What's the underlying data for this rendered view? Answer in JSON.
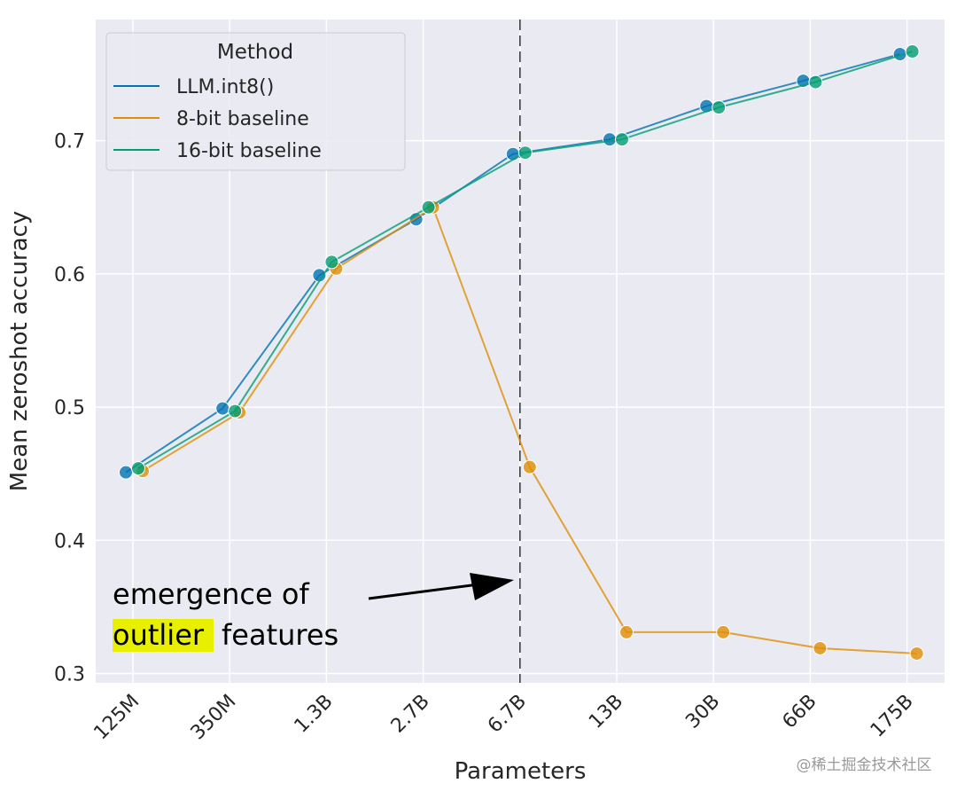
{
  "chart_data": {
    "type": "line",
    "xlabel": "Parameters",
    "ylabel": "Mean zeroshot accuracy",
    "categories": [
      "125M",
      "350M",
      "1.3B",
      "2.7B",
      "6.7B",
      "13B",
      "30B",
      "66B",
      "175B"
    ],
    "series": [
      {
        "name": "LLM.int8()",
        "color": "#0173b2",
        "values": [
          0.451,
          0.499,
          0.599,
          0.641,
          0.69,
          0.701,
          0.726,
          0.745,
          0.765
        ]
      },
      {
        "name": "8-bit baseline",
        "color": "#de8f05",
        "values": [
          0.452,
          0.496,
          0.604,
          0.65,
          0.455,
          0.331,
          0.331,
          0.319,
          0.315
        ]
      },
      {
        "name": "16-bit baseline",
        "color": "#029e73",
        "values": [
          0.454,
          0.497,
          0.609,
          0.65,
          0.691,
          0.701,
          0.725,
          0.744,
          0.767
        ]
      }
    ],
    "legend_title": "Method",
    "ylim": [
      0.293,
      0.791
    ],
    "yticks": [
      0.3,
      0.4,
      0.5,
      0.6,
      0.7
    ],
    "grid": true,
    "annotation": [
      "emergence of",
      "outlier",
      "features"
    ],
    "watermark": "@稀土掘金技术社区"
  }
}
